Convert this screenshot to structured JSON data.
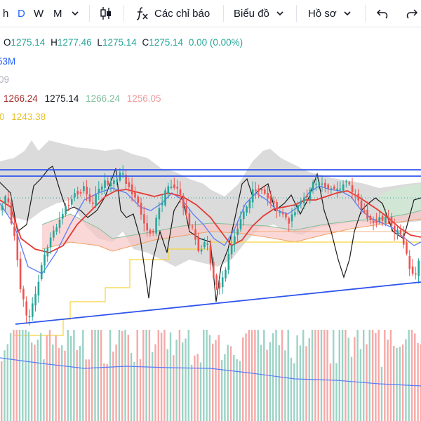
{
  "toolbar": {
    "timeframes": [
      "h",
      "D",
      "W",
      "M"
    ],
    "active_timeframe": "D",
    "indicators_label": "Các chỉ báo",
    "chart_label": "Biểu đồ",
    "profile_label": "Hồ sơ",
    "icons": [
      "chevron-down-icon",
      "candle-chart-icon",
      "fx-icon",
      "undo-icon",
      "redo-icon"
    ]
  },
  "legend": {
    "o_label": "O",
    "o_value": "1275.14",
    "h_label": "H",
    "h_value": "1277.46",
    "l_label": "L",
    "l_value": "1275.14",
    "c_label": "C",
    "c_value": "1275.14",
    "change": "0.00 (0.00%)",
    "volume_fragment": "53M",
    "fragment_3": "09",
    "ichimoku_values": [
      "1266.24",
      "1275.14",
      "1266.24",
      "1256.05"
    ],
    "yellow_fragment": "0",
    "yellow_value": "1243.38"
  },
  "colors": {
    "up": "#26a69a",
    "down": "#ef5350",
    "bg": "#ffffff",
    "trendline": "#2f54eb",
    "ma_red": "#e53935",
    "ma_blue": "#5b7cfa",
    "lagging_black": "#1a1a1a",
    "yellow": "#f5d33c",
    "orange": "#f0a060",
    "cloud_gray": "#bdbdbd",
    "cloud_pink": "#f8c8c8",
    "cloud_green": "#cfe8d4",
    "legend_ichimoku": [
      "#a52a2a",
      "#131722",
      "#7fbf9a",
      "#ef9a9a"
    ],
    "legend_volume_blue": "#2962ff",
    "legend_yellow": "#e6c229"
  }
}
